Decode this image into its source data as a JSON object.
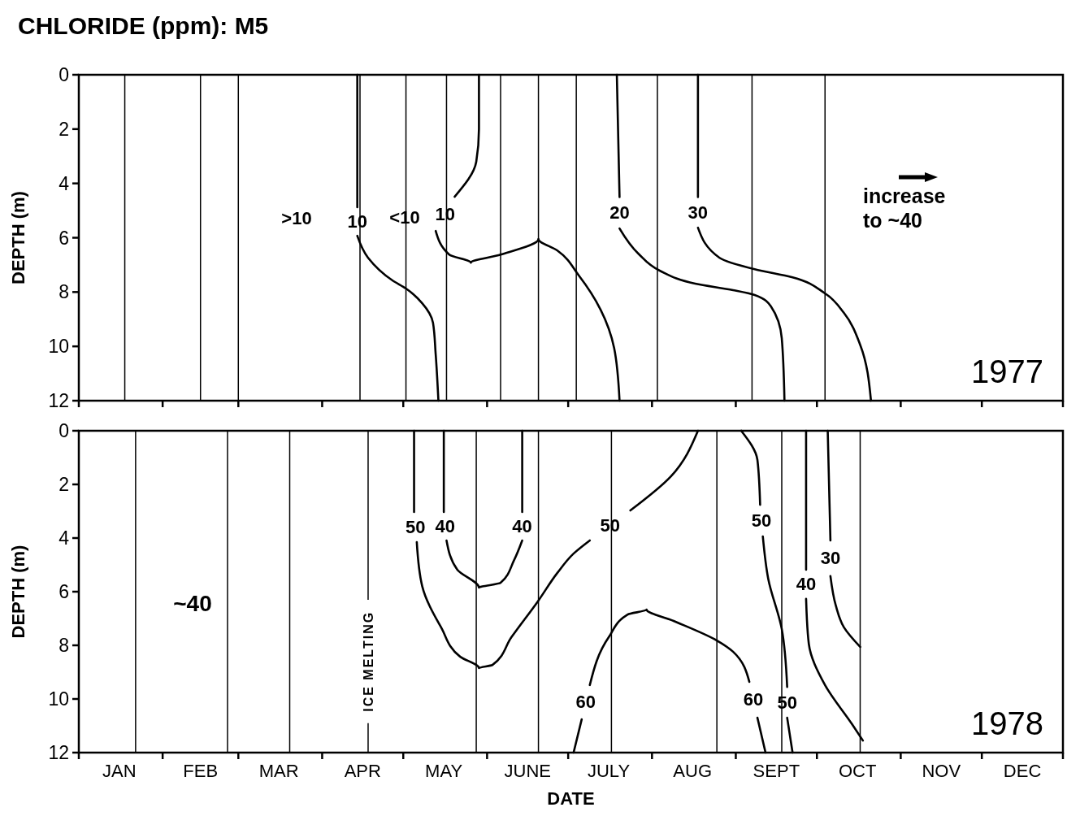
{
  "chart_data": [
    {
      "type": "line",
      "title": "CHLORIDE (ppm): M5",
      "ylabel": "DEPTH (m)",
      "xlim": [
        "--01-01",
        "--12-31"
      ],
      "ylim": [
        12,
        0
      ],
      "yticks": [
        0,
        2,
        4,
        6,
        8,
        10,
        12
      ],
      "tick_labels": "y",
      "grid": false,
      "marker": "none",
      "line_style": "solid",
      "xticks": [
        {
          "value": "--01-01",
          "label": null
        },
        {
          "value": "--02-01",
          "label": null
        },
        {
          "value": "--03-01",
          "label": null
        },
        {
          "value": "--04-01",
          "label": null
        },
        {
          "value": "--05-01",
          "label": null
        },
        {
          "value": "--06-01",
          "label": null
        },
        {
          "value": "--07-01",
          "label": null
        },
        {
          "value": "--08-01",
          "label": null
        },
        {
          "value": "--09-01",
          "label": null
        },
        {
          "value": "--10-01",
          "label": null
        },
        {
          "value": "--11-01",
          "label": null
        },
        {
          "value": "--12-01",
          "label": null
        },
        {
          "value": "--12-31",
          "label": null
        }
      ],
      "series": [
        {
          "name": "10",
          "color": "#000000",
          "x": [
            "--04-14",
            "--04-14",
            null,
            "--04-14",
            "--04-18",
            "--04-27",
            "--05-02",
            "--05-08",
            "--05-12",
            "--05-13",
            "--05-14"
          ],
          "values": [
            0,
            4.88,
            null,
            5.93,
            6.74,
            7.57,
            7.87,
            8.41,
            9.13,
            10.3,
            12
          ]
        },
        {
          "name": "10",
          "color": "#000000",
          "x": [
            "--05-29",
            "--05-29",
            "--05-28",
            "--05-20",
            null,
            "--05-13",
            "--05-18",
            "--05-26",
            "--06-06",
            "--06-20",
            "--06-27",
            "--07-05",
            "--07-13",
            "--07-18",
            "--07-20"
          ],
          "values": [
            0,
            2.0,
            3.2,
            4.49,
            null,
            5.75,
            6.62,
            6.92,
            6.62,
            6.05,
            6.47,
            7.4,
            8.65,
            10.06,
            12
          ]
        },
        {
          "name": "20",
          "color": "#000000",
          "x": [
            "--07-19",
            "--07-20",
            null,
            "--07-20",
            "--07-27",
            "--08-04",
            "--08-17",
            "--08-31",
            "--09-08",
            "--09-14",
            "--09-18",
            "--09-19"
          ],
          "values": [
            0,
            4.5,
            null,
            5.66,
            6.59,
            7.22,
            7.69,
            7.93,
            8.11,
            8.53,
            9.7,
            12
          ]
        },
        {
          "name": "30",
          "color": "#000000",
          "x": [
            "--08-18",
            "--08-18",
            null,
            "--08-18",
            "--08-26",
            "--09-08",
            "--09-22",
            "--10-04",
            "--10-11",
            "--10-17",
            "--10-21"
          ],
          "values": [
            0,
            4.5,
            null,
            5.63,
            6.74,
            7.16,
            7.46,
            8.05,
            8.77,
            9.94,
            12
          ]
        }
      ],
      "ref_lines": [
        {
          "axis": "x",
          "value": "--01-18"
        },
        {
          "axis": "x",
          "value": "--02-15"
        },
        {
          "axis": "x",
          "value": "--03-01"
        },
        {
          "axis": "x",
          "value": "--04-15"
        },
        {
          "axis": "x",
          "value": "--05-02"
        },
        {
          "axis": "x",
          "value": "--05-17"
        },
        {
          "axis": "x",
          "value": "--06-06"
        },
        {
          "axis": "x",
          "value": "--06-20"
        },
        {
          "axis": "x",
          "value": "--07-04"
        },
        {
          "axis": "x",
          "value": "--08-03"
        },
        {
          "axis": "x",
          "value": "--09-07"
        },
        {
          "axis": "x",
          "value": "--10-04"
        }
      ],
      "annotations": [
        ">10",
        "<10",
        "increase to ~40",
        "1977"
      ]
    },
    {
      "type": "line",
      "xlabel": "DATE",
      "ylabel": "DEPTH (m)",
      "xlim": [
        "--01-01",
        "--12-31"
      ],
      "ylim": [
        12,
        0
      ],
      "yticks": [
        0,
        2,
        4,
        6,
        8,
        10,
        12
      ],
      "grid": false,
      "marker": "none",
      "line_style": "solid",
      "xticks": [
        {
          "value": "--01-01",
          "label": null
        },
        {
          "value": "--01-16",
          "label": "JAN"
        },
        {
          "value": "--02-01",
          "label": null
        },
        {
          "value": "--02-15",
          "label": "FEB"
        },
        {
          "value": "--03-01",
          "label": null
        },
        {
          "value": "--03-16",
          "label": "MAR"
        },
        {
          "value": "--04-01",
          "label": null
        },
        {
          "value": "--04-16",
          "label": "APR"
        },
        {
          "value": "--05-01",
          "label": null
        },
        {
          "value": "--05-16",
          "label": "MAY"
        },
        {
          "value": "--06-01",
          "label": null
        },
        {
          "value": "--06-16",
          "label": "JUNE"
        },
        {
          "value": "--07-01",
          "label": null
        },
        {
          "value": "--07-16",
          "label": "JULY"
        },
        {
          "value": "--08-01",
          "label": null
        },
        {
          "value": "--08-16",
          "label": "AUG"
        },
        {
          "value": "--09-01",
          "label": null
        },
        {
          "value": "--09-16",
          "label": "SEPT"
        },
        {
          "value": "--10-01",
          "label": null
        },
        {
          "value": "--10-16",
          "label": "OCT"
        },
        {
          "value": "--11-01",
          "label": null
        },
        {
          "value": "--11-16",
          "label": "NOV"
        },
        {
          "value": "--12-01",
          "label": null
        },
        {
          "value": "--12-16",
          "label": "DEC"
        },
        {
          "value": "--12-31",
          "label": null
        }
      ],
      "series": [
        {
          "name": "50",
          "color": "#000000",
          "x": [
            "--05-05",
            "--05-05",
            null,
            "--05-06",
            "--05-08",
            "--05-15",
            "--05-22",
            "--05-29",
            "--06-03",
            "--06-10",
            "--06-20",
            "--06-27",
            "--07-03",
            "--07-09",
            null,
            "--07-24",
            "--08-08",
            "--08-18"
          ],
          "values": [
            0,
            3.03,
            null,
            4.15,
            5.79,
            7.33,
            8.42,
            8.85,
            8.73,
            7.7,
            6.33,
            5.3,
            4.58,
            4.09,
            null,
            2.97,
            1.7,
            0
          ]
        },
        {
          "name": "40",
          "color": "#000000",
          "x": [
            "--05-16",
            "--05-16",
            null,
            "--05-17",
            "--05-21",
            "--05-29",
            "--06-06",
            "--06-11",
            "--06-14",
            null,
            "--06-14",
            "--06-14"
          ],
          "values": [
            0,
            3.03,
            null,
            4.09,
            5.18,
            5.85,
            5.67,
            4.82,
            4.09,
            null,
            3.03,
            0
          ]
        },
        {
          "name": "60",
          "color": "#000000",
          "x": [
            "--07-03",
            "--07-06",
            null,
            "--07-09",
            "--07-16",
            "--07-23",
            "--07-30",
            "--08-09",
            "--08-25",
            "--08-31",
            "--09-06",
            null,
            "--09-09",
            "--09-12"
          ],
          "values": [
            12,
            10.76,
            null,
            9.48,
            7.7,
            6.85,
            6.67,
            7.09,
            7.82,
            8.24,
            9.36,
            null,
            10.7,
            12
          ]
        },
        {
          "name": "50",
          "color": "#000000",
          "x": [
            "--09-03",
            "--09-09",
            "--09-10",
            null,
            "--09-11",
            "--09-13",
            "--09-18",
            "--09-20",
            null,
            "--09-20",
            "--09-22"
          ],
          "values": [
            0,
            1.09,
            2.76,
            null,
            3.94,
            5.52,
            7.39,
            9.55,
            null,
            10.7,
            12
          ]
        },
        {
          "name": "40",
          "color": "#000000",
          "x": [
            "--09-27",
            "--09-27",
            null,
            "--09-27",
            "--09-28",
            "--10-04",
            "--10-14",
            "--10-18"
          ],
          "values": [
            0,
            5.18,
            null,
            6.27,
            7.94,
            9.48,
            10.94,
            11.55
          ]
        },
        {
          "name": "30",
          "color": "#000000",
          "x": [
            "--10-05",
            "--10-06",
            null,
            "--10-06",
            "--10-08",
            "--10-11",
            "--10-17"
          ],
          "values": [
            0,
            4.09,
            null,
            5.42,
            6.52,
            7.33,
            8.06
          ]
        }
      ],
      "ref_lines": [
        {
          "axis": "x",
          "value": "--01-22"
        },
        {
          "axis": "x",
          "value": "--02-25"
        },
        {
          "axis": "x",
          "value": "--03-20"
        },
        {
          "axis": "x",
          "value": "--04-18",
          "label": "ICE MELTING"
        },
        {
          "axis": "x",
          "value": "--05-28"
        },
        {
          "axis": "x",
          "value": "--06-20"
        },
        {
          "axis": "x",
          "value": "--07-17"
        },
        {
          "axis": "x",
          "value": "--08-25"
        },
        {
          "axis": "x",
          "value": "--09-18"
        },
        {
          "axis": "x",
          "value": "--10-17"
        }
      ],
      "annotations": [
        "~40",
        "1978"
      ]
    }
  ]
}
